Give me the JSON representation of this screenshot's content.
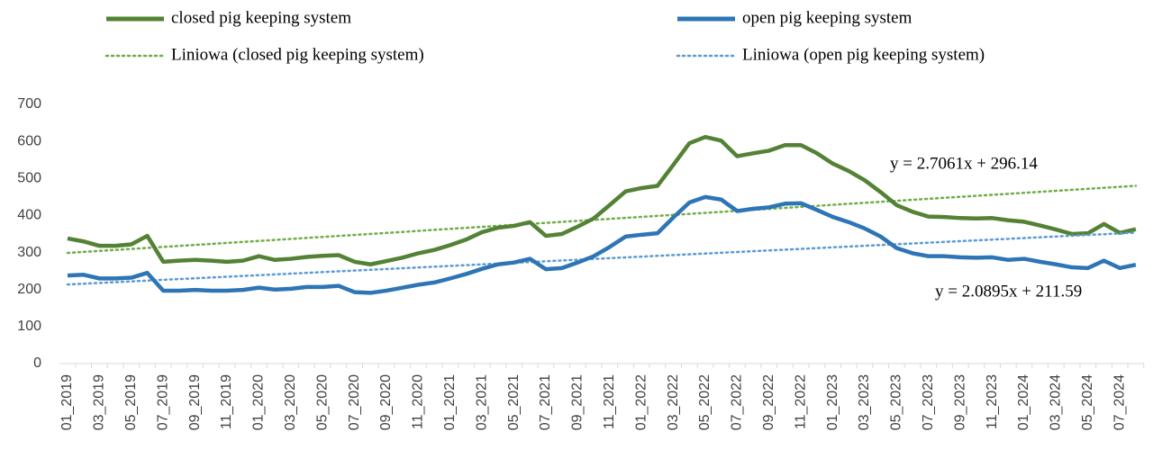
{
  "chart_data": {
    "type": "line",
    "categories": [
      "01_2019",
      null,
      "03_2019",
      null,
      "05_2019",
      null,
      "07_2019",
      null,
      "09_2019",
      null,
      "11_2019",
      null,
      "01_2020",
      null,
      "03_2020",
      null,
      "05_2020",
      null,
      "07_2020",
      null,
      "09_2020",
      null,
      "11_2020",
      null,
      "01_2021",
      null,
      "03_2021",
      null,
      "05_2021",
      null,
      "07_2021",
      null,
      "09_2021",
      null,
      "11_2021",
      null,
      "01_2022",
      null,
      "03_2022",
      null,
      "05_2022",
      null,
      "07_2022",
      null,
      "09_2022",
      null,
      "11_2022",
      null,
      "01_2023",
      null,
      "03_2023",
      null,
      "05_2023",
      null,
      "07_2023",
      null,
      "09_2023",
      null,
      "11_2023",
      null,
      "01_2024",
      null,
      "03_2024",
      null,
      "05_2024",
      null,
      "07_2024",
      null
    ],
    "series": [
      {
        "name": "closed pig keeping system",
        "color": "#548235",
        "values": [
          338,
          330,
          318,
          318,
          322,
          345,
          275,
          278,
          280,
          278,
          275,
          278,
          290,
          280,
          283,
          288,
          291,
          293,
          275,
          268,
          277,
          286,
          298,
          307,
          320,
          335,
          355,
          367,
          372,
          382,
          345,
          350,
          370,
          392,
          428,
          465,
          474,
          480,
          537,
          595,
          612,
          602,
          560,
          568,
          575,
          590,
          590,
          568,
          540,
          520,
          495,
          463,
          428,
          410,
          397,
          396,
          393,
          392,
          393,
          387,
          383,
          373,
          362,
          350,
          352,
          377,
          353,
          363
        ],
        "trend": {
          "name": "Liniowa (closed pig keeping system)",
          "color": "#70ad47",
          "slope": 2.7061,
          "intercept": 296.14,
          "equation": "y = 2.7061x + 296.14"
        }
      },
      {
        "name": "open pig keeping system",
        "color": "#2e75b6",
        "values": [
          238,
          240,
          230,
          230,
          232,
          245,
          197,
          197,
          199,
          197,
          197,
          199,
          205,
          200,
          202,
          207,
          207,
          210,
          193,
          191,
          197,
          205,
          213,
          219,
          230,
          242,
          256,
          268,
          273,
          283,
          255,
          258,
          273,
          290,
          315,
          343,
          348,
          352,
          395,
          435,
          450,
          443,
          412,
          418,
          422,
          432,
          433,
          415,
          396,
          382,
          365,
          343,
          312,
          298,
          290,
          290,
          287,
          286,
          287,
          280,
          283,
          275,
          268,
          260,
          258,
          278,
          258,
          267
        ],
        "trend": {
          "name": "Liniowa (open pig keeping system)",
          "color": "#5b9bd5",
          "slope": 2.0895,
          "intercept": 211.59,
          "equation": "y = 2.0895x + 211.59"
        }
      }
    ],
    "ylim": [
      0,
      700
    ],
    "yticks": [
      0,
      100,
      200,
      300,
      400,
      500,
      600,
      700
    ],
    "grid": false
  }
}
